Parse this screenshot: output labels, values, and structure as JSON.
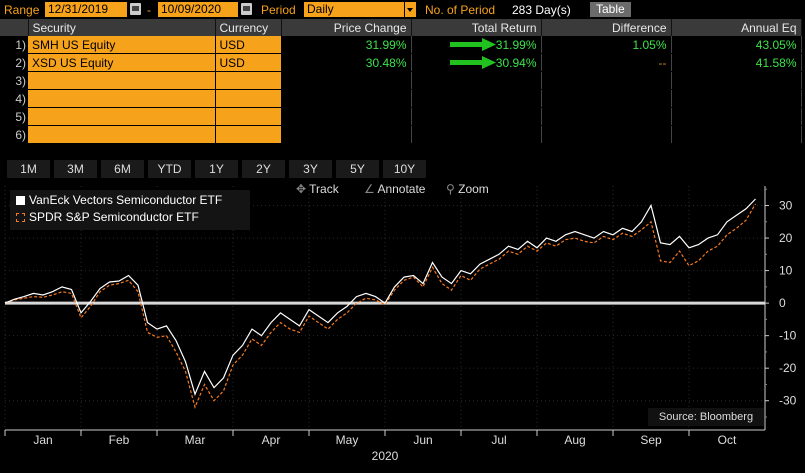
{
  "topbar": {
    "range_label": "Range",
    "start_date": "12/31/2019",
    "dash": "-",
    "end_date": "10/09/2020",
    "period_label": "Period",
    "period_value": "Daily",
    "nop_label": "No. of Period",
    "nop_value": "283 Day(s)",
    "table_button": "Table"
  },
  "table": {
    "headers": [
      "Security",
      "Currency",
      "Price Change",
      "Total Return",
      "Difference",
      "Annual Eq"
    ],
    "rows": [
      {
        "num": "1)",
        "security": "SMH US Equity",
        "currency": "USD",
        "price_change": "31.99%",
        "total_return": "31.99%",
        "difference": "1.05%",
        "annual_eq": "43.05%"
      },
      {
        "num": "2)",
        "security": "XSD US Equity",
        "currency": "USD",
        "price_change": "30.48%",
        "total_return": "30.94%",
        "difference": "--",
        "annual_eq": "41.58%"
      },
      {
        "num": "3)",
        "security": "",
        "currency": "",
        "price_change": "",
        "total_return": "",
        "difference": "",
        "annual_eq": ""
      },
      {
        "num": "4)",
        "security": "",
        "currency": "",
        "price_change": "",
        "total_return": "",
        "difference": "",
        "annual_eq": ""
      },
      {
        "num": "5)",
        "security": "",
        "currency": "",
        "price_change": "",
        "total_return": "",
        "difference": "",
        "annual_eq": ""
      },
      {
        "num": "6)",
        "security": "",
        "currency": "",
        "price_change": "",
        "total_return": "",
        "difference": "",
        "annual_eq": ""
      }
    ]
  },
  "period_buttons": [
    "1M",
    "3M",
    "6M",
    "YTD",
    "1Y",
    "2Y",
    "3Y",
    "5Y",
    "10Y"
  ],
  "chart_tools": {
    "track": "Track",
    "annotate": "Annotate",
    "zoom": "Zoom"
  },
  "source": "Source: Bloomberg",
  "colors": {
    "accent": "#f7a21b",
    "green": "#3fe14b",
    "series_white": "#ffffff",
    "series_orange": "#f7791f"
  },
  "chart_data": {
    "type": "line",
    "title": "",
    "xlabel": "2020",
    "ylabel": "",
    "x_ticks": [
      "Jan",
      "Feb",
      "Mar",
      "Apr",
      "May",
      "Jun",
      "Jul",
      "Aug",
      "Sep",
      "Oct"
    ],
    "y_ticks": [
      -30,
      -20,
      -10,
      0,
      10,
      20,
      30
    ],
    "ylim": [
      -39,
      36
    ],
    "xlim": [
      0,
      40
    ],
    "grid": true,
    "legend_position": "top-left",
    "zero_line": true,
    "series": [
      {
        "name": "VanEck Vectors Semiconductor ETF",
        "points": [
          [
            0,
            0
          ],
          [
            0.5,
            1.2
          ],
          [
            1,
            2
          ],
          [
            1.5,
            3
          ],
          [
            2,
            2.5
          ],
          [
            2.5,
            3.5
          ],
          [
            3,
            5
          ],
          [
            3.5,
            4.2
          ],
          [
            4,
            -3
          ],
          [
            4.5,
            0.5
          ],
          [
            5,
            4.5
          ],
          [
            5.5,
            6.5
          ],
          [
            6,
            6.8
          ],
          [
            6.5,
            8.5
          ],
          [
            7,
            5.5
          ],
          [
            7.5,
            -6
          ],
          [
            8,
            -8
          ],
          [
            8.5,
            -7
          ],
          [
            9,
            -11.5
          ],
          [
            9.5,
            -18
          ],
          [
            10,
            -28
          ],
          [
            10.5,
            -21
          ],
          [
            11,
            -26
          ],
          [
            11.5,
            -23
          ],
          [
            12,
            -16
          ],
          [
            12.5,
            -13
          ],
          [
            13,
            -8
          ],
          [
            13.5,
            -10
          ],
          [
            14,
            -6
          ],
          [
            14.5,
            -3
          ],
          [
            15,
            -5
          ],
          [
            15.5,
            -7
          ],
          [
            16,
            -2
          ],
          [
            16.5,
            -4
          ],
          [
            17,
            -6
          ],
          [
            17.5,
            -3
          ],
          [
            18,
            -1
          ],
          [
            18.5,
            2
          ],
          [
            19,
            3
          ],
          [
            19.5,
            2
          ],
          [
            20,
            0
          ],
          [
            20.5,
            5
          ],
          [
            21,
            8
          ],
          [
            21.5,
            8.5
          ],
          [
            22,
            6
          ],
          [
            22.5,
            12.5
          ],
          [
            23,
            8
          ],
          [
            23.5,
            6
          ],
          [
            24,
            10
          ],
          [
            24.5,
            9
          ],
          [
            25,
            12
          ],
          [
            25.5,
            13.5
          ],
          [
            26,
            15
          ],
          [
            26.5,
            17.5
          ],
          [
            27,
            16.5
          ],
          [
            27.5,
            19
          ],
          [
            28,
            17
          ],
          [
            28.5,
            20
          ],
          [
            29,
            19
          ],
          [
            29.5,
            21
          ],
          [
            30,
            22
          ],
          [
            30.5,
            21
          ],
          [
            31,
            20
          ],
          [
            31.5,
            22
          ],
          [
            32,
            21
          ],
          [
            32.5,
            23
          ],
          [
            33,
            22
          ],
          [
            33.5,
            25
          ],
          [
            34,
            30
          ],
          [
            34.5,
            18.5
          ],
          [
            35,
            18
          ],
          [
            35.5,
            20.5
          ],
          [
            36,
            17
          ],
          [
            36.5,
            18
          ],
          [
            37,
            20
          ],
          [
            37.5,
            21
          ],
          [
            38,
            25
          ],
          [
            38.5,
            27
          ],
          [
            39,
            29
          ],
          [
            39.5,
            32
          ]
        ]
      },
      {
        "name": "SPDR S&P Semiconductor ETF",
        "points": [
          [
            0,
            0
          ],
          [
            0.5,
            1
          ],
          [
            1,
            1.5
          ],
          [
            1.5,
            2
          ],
          [
            2,
            1.8
          ],
          [
            2.5,
            2.5
          ],
          [
            3,
            3.5
          ],
          [
            3.5,
            3
          ],
          [
            4,
            -4.5
          ],
          [
            4.5,
            -1
          ],
          [
            5,
            3.5
          ],
          [
            5.5,
            5.5
          ],
          [
            6,
            6
          ],
          [
            6.5,
            7
          ],
          [
            7,
            3.5
          ],
          [
            7.5,
            -9
          ],
          [
            8,
            -10.5
          ],
          [
            8.5,
            -10
          ],
          [
            9,
            -15
          ],
          [
            9.5,
            -21
          ],
          [
            10,
            -32
          ],
          [
            10.5,
            -25
          ],
          [
            11,
            -30
          ],
          [
            11.5,
            -27
          ],
          [
            12,
            -19
          ],
          [
            12.5,
            -16
          ],
          [
            13,
            -11
          ],
          [
            13.5,
            -13
          ],
          [
            14,
            -9
          ],
          [
            14.5,
            -6
          ],
          [
            15,
            -8
          ],
          [
            15.5,
            -9
          ],
          [
            16,
            -4
          ],
          [
            16.5,
            -6
          ],
          [
            17,
            -8
          ],
          [
            17.5,
            -5
          ],
          [
            18,
            -3
          ],
          [
            18.5,
            0
          ],
          [
            19,
            1.5
          ],
          [
            19.5,
            1
          ],
          [
            20,
            -0.5
          ],
          [
            20.5,
            4
          ],
          [
            21,
            7
          ],
          [
            21.5,
            8
          ],
          [
            22,
            5
          ],
          [
            22.5,
            11
          ],
          [
            23,
            6
          ],
          [
            23.5,
            4
          ],
          [
            24,
            8.5
          ],
          [
            24.5,
            7
          ],
          [
            25,
            10.5
          ],
          [
            25.5,
            12
          ],
          [
            26,
            13.5
          ],
          [
            26.5,
            16
          ],
          [
            27,
            15
          ],
          [
            27.5,
            17.5
          ],
          [
            28,
            16
          ],
          [
            28.5,
            18.5
          ],
          [
            29,
            17.5
          ],
          [
            29.5,
            19.5
          ],
          [
            30,
            20
          ],
          [
            30.5,
            19
          ],
          [
            31,
            18.5
          ],
          [
            31.5,
            20.5
          ],
          [
            32,
            19.5
          ],
          [
            32.5,
            21.5
          ],
          [
            33,
            20.5
          ],
          [
            33.5,
            22.5
          ],
          [
            34,
            25
          ],
          [
            34.5,
            13
          ],
          [
            35,
            12.5
          ],
          [
            35.5,
            16
          ],
          [
            36,
            11.5
          ],
          [
            36.5,
            13
          ],
          [
            37,
            16
          ],
          [
            37.5,
            17.5
          ],
          [
            38,
            21
          ],
          [
            38.5,
            23
          ],
          [
            39,
            25.5
          ],
          [
            39.5,
            30.5
          ]
        ]
      }
    ]
  }
}
